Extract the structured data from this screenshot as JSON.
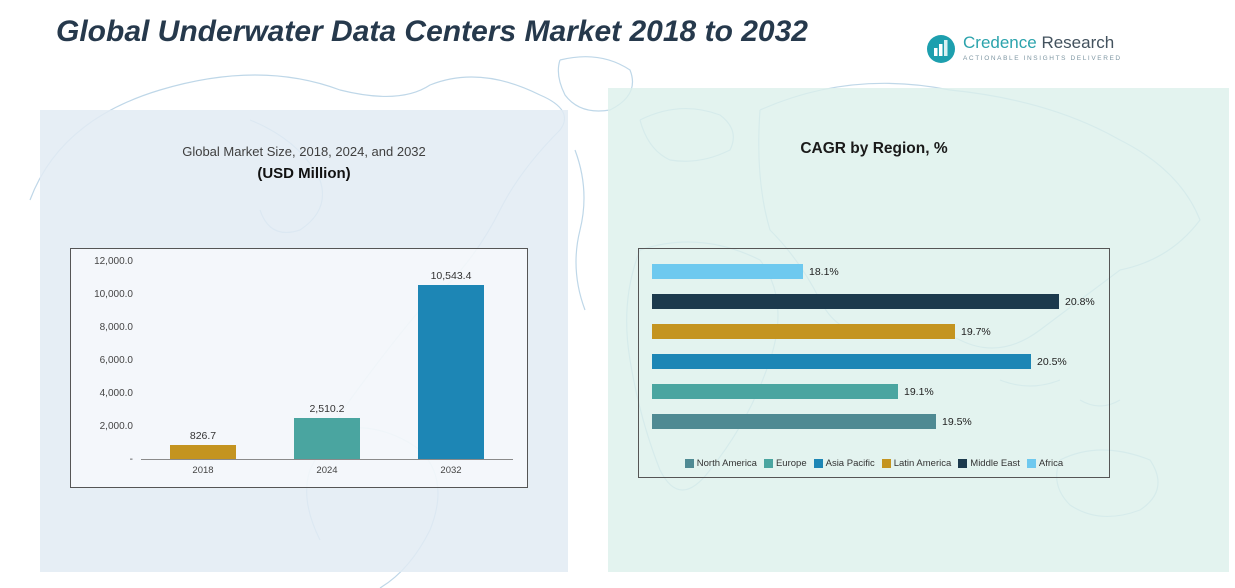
{
  "page": {
    "title": "Global Underwater Data Centers Market 2018 to 2032"
  },
  "logo": {
    "name_primary": "Credence",
    "name_secondary": "Research",
    "tagline": "Actionable Insights Delivered"
  },
  "left_chart": {
    "title_line1": "Global Market Size, 2018, 2024, and 2032",
    "title_line2": "(USD Million)"
  },
  "right_chart": {
    "title": "CAGR by Region, %"
  },
  "chart_data": [
    {
      "type": "bar",
      "title": "Global Market Size, 2018, 2024, and 2032 (USD Million)",
      "categories": [
        "2018",
        "2024",
        "2032"
      ],
      "values": [
        826.7,
        2510.2,
        10543.4
      ],
      "data_labels": [
        "826.7",
        "2,510.2",
        "10,543.4"
      ],
      "ylim": [
        0,
        12000
      ],
      "yticks": [
        "12,000.0",
        "10,000.0",
        "8,000.0",
        "6,000.0",
        "4,000.0",
        "2,000.0",
        "-"
      ],
      "bar_colors": [
        "#C49420",
        "#4AA5A0",
        "#1D86B5"
      ],
      "grid": false,
      "legend_position": "none"
    },
    {
      "type": "bar-horizontal",
      "title": "CAGR by Region, %",
      "categories": [
        "Africa",
        "Middle East",
        "Latin America",
        "Asia Pacific",
        "Europe",
        "North America"
      ],
      "values": [
        18.1,
        20.8,
        19.7,
        20.5,
        19.1,
        19.5
      ],
      "data_labels": [
        "18.1%",
        "20.8%",
        "19.7%",
        "20.5%",
        "19.1%",
        "19.5%"
      ],
      "xlim": [
        16.5,
        21
      ],
      "bar_colors": [
        "#6EC9EF",
        "#1C3A4D",
        "#C49420",
        "#1D86B5",
        "#4AA5A0",
        "#4F8A93"
      ],
      "grid": false,
      "legend_position": "bottom",
      "legend": [
        "North America",
        "Europe",
        "Asia Pacific",
        "Latin America",
        "Middle East",
        "Africa"
      ],
      "legend_colors": [
        "#4F8A93",
        "#4AA5A0",
        "#1D86B5",
        "#C49420",
        "#1C3A4D",
        "#6EC9EF"
      ]
    }
  ]
}
